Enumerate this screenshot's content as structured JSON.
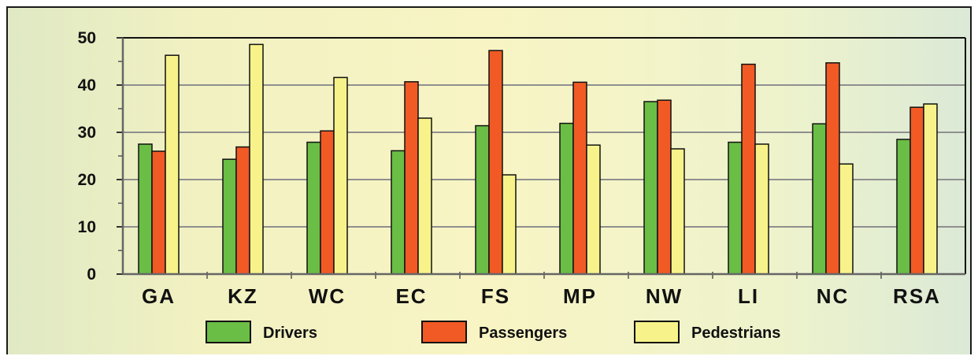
{
  "colors": {
    "drivers": "#6abd45",
    "passengers": "#f15a24",
    "pedestrians": "#f7f38a"
  },
  "chart_data": {
    "type": "bar",
    "title": "",
    "xlabel": "",
    "ylabel": "",
    "ylim": [
      0,
      50
    ],
    "yticks": [
      0,
      10,
      20,
      30,
      40,
      50
    ],
    "grid": true,
    "legend_position": "bottom",
    "categories": [
      "GA",
      "KZ",
      "WC",
      "EC",
      "FS",
      "MP",
      "NW",
      "LI",
      "NC",
      "RSA"
    ],
    "series": [
      {
        "name": "Drivers",
        "color": "#6abd45",
        "values": [
          27.5,
          24.3,
          27.9,
          26.1,
          31.4,
          31.9,
          36.5,
          27.9,
          31.8,
          28.5
        ]
      },
      {
        "name": "Passengers",
        "color": "#f15a24",
        "values": [
          26.0,
          26.9,
          30.3,
          40.7,
          47.3,
          40.6,
          36.8,
          44.4,
          44.7,
          35.3
        ]
      },
      {
        "name": "Pedestrians",
        "color": "#f7f38a",
        "values": [
          46.3,
          48.6,
          41.6,
          33.0,
          21.0,
          27.3,
          26.5,
          27.5,
          23.3,
          36.0
        ]
      }
    ]
  }
}
